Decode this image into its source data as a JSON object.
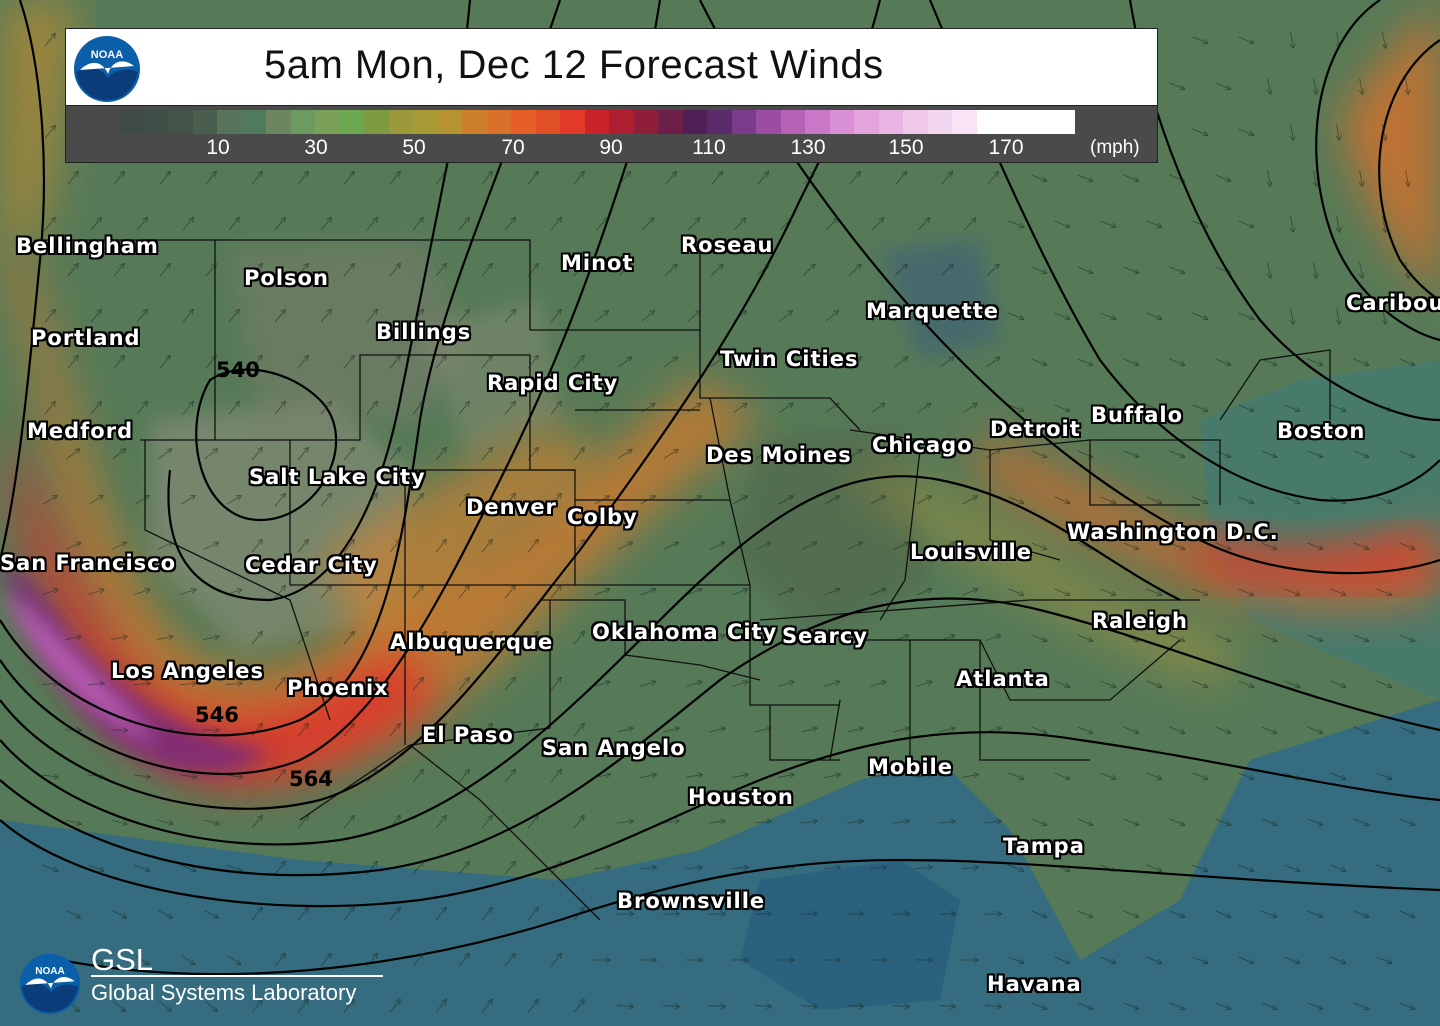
{
  "title": "5am Mon, Dec 12 Forecast Winds",
  "legend": {
    "unit": "(mph)",
    "ticks": [
      "10",
      "30",
      "50",
      "70",
      "90",
      "110",
      "130",
      "150",
      "170"
    ],
    "colors": [
      "#3d4a45",
      "#3f4f47",
      "#445449",
      "#4a5e4f",
      "#57735a",
      "#4f7a5c",
      "#6d8560",
      "#6d9a60",
      "#7aa05a",
      "#6aa852",
      "#7e9a43",
      "#9a9a3a",
      "#a89a34",
      "#b59331",
      "#cc7e2a",
      "#d9712a",
      "#e65f28",
      "#e04f25",
      "#e2392a",
      "#c8222a",
      "#ad1f30",
      "#8f1e3a",
      "#6d1f4a",
      "#4f1f55",
      "#5a2a6a",
      "#7a3b8a",
      "#9a4da2",
      "#b661b5",
      "#c978c7",
      "#d98fd4",
      "#e3a3dd",
      "#e9b6e3",
      "#efc8ea",
      "#f3d6ef",
      "#f8e4f4",
      "#ffffff",
      "#ffffff",
      "#ffffff",
      "#ffffff"
    ]
  },
  "cities": [
    {
      "name": "Bellingham",
      "pos": "nw"
    },
    {
      "name": "Polson",
      "pos": ""
    },
    {
      "name": "Portland",
      "pos": ""
    },
    {
      "name": "Billings",
      "pos": ""
    },
    {
      "name": "Minot",
      "pos": ""
    },
    {
      "name": "Roseau",
      "pos": ""
    },
    {
      "name": "Caribou",
      "pos": ""
    },
    {
      "name": "Marquette",
      "pos": ""
    },
    {
      "name": "Rapid City",
      "pos": ""
    },
    {
      "name": "Twin Cities",
      "pos": ""
    },
    {
      "name": "Medford",
      "pos": ""
    },
    {
      "name": "Buffalo",
      "pos": ""
    },
    {
      "name": "Detroit",
      "pos": ""
    },
    {
      "name": "Boston",
      "pos": ""
    },
    {
      "name": "Chicago",
      "pos": ""
    },
    {
      "name": "Des Moines",
      "pos": ""
    },
    {
      "name": "Salt Lake City",
      "pos": ""
    },
    {
      "name": "Denver",
      "pos": ""
    },
    {
      "name": "Colby",
      "pos": ""
    },
    {
      "name": "Washington D.C.",
      "pos": ""
    },
    {
      "name": "Louisville",
      "pos": ""
    },
    {
      "name": "San Francisco",
      "pos": ""
    },
    {
      "name": "Cedar City",
      "pos": ""
    },
    {
      "name": "Raleigh",
      "pos": ""
    },
    {
      "name": "Oklahoma City",
      "pos": ""
    },
    {
      "name": "Searcy",
      "pos": ""
    },
    {
      "name": "Albuquerque",
      "pos": ""
    },
    {
      "name": "Los Angeles",
      "pos": ""
    },
    {
      "name": "Atlanta",
      "pos": ""
    },
    {
      "name": "Phoenix",
      "pos": ""
    },
    {
      "name": "El Paso",
      "pos": ""
    },
    {
      "name": "San Angelo",
      "pos": ""
    },
    {
      "name": "Mobile",
      "pos": ""
    },
    {
      "name": "Houston",
      "pos": ""
    },
    {
      "name": "Tampa",
      "pos": ""
    },
    {
      "name": "Brownsville",
      "pos": ""
    },
    {
      "name": "Havana",
      "pos": ""
    }
  ],
  "contour_labels": [
    "540",
    "546",
    "564"
  ],
  "branding": {
    "top_logo": "NOAA",
    "bottom_logo": "NOAA",
    "lab_abbr": "GSL",
    "lab_name": "Global Systems Laboratory"
  }
}
